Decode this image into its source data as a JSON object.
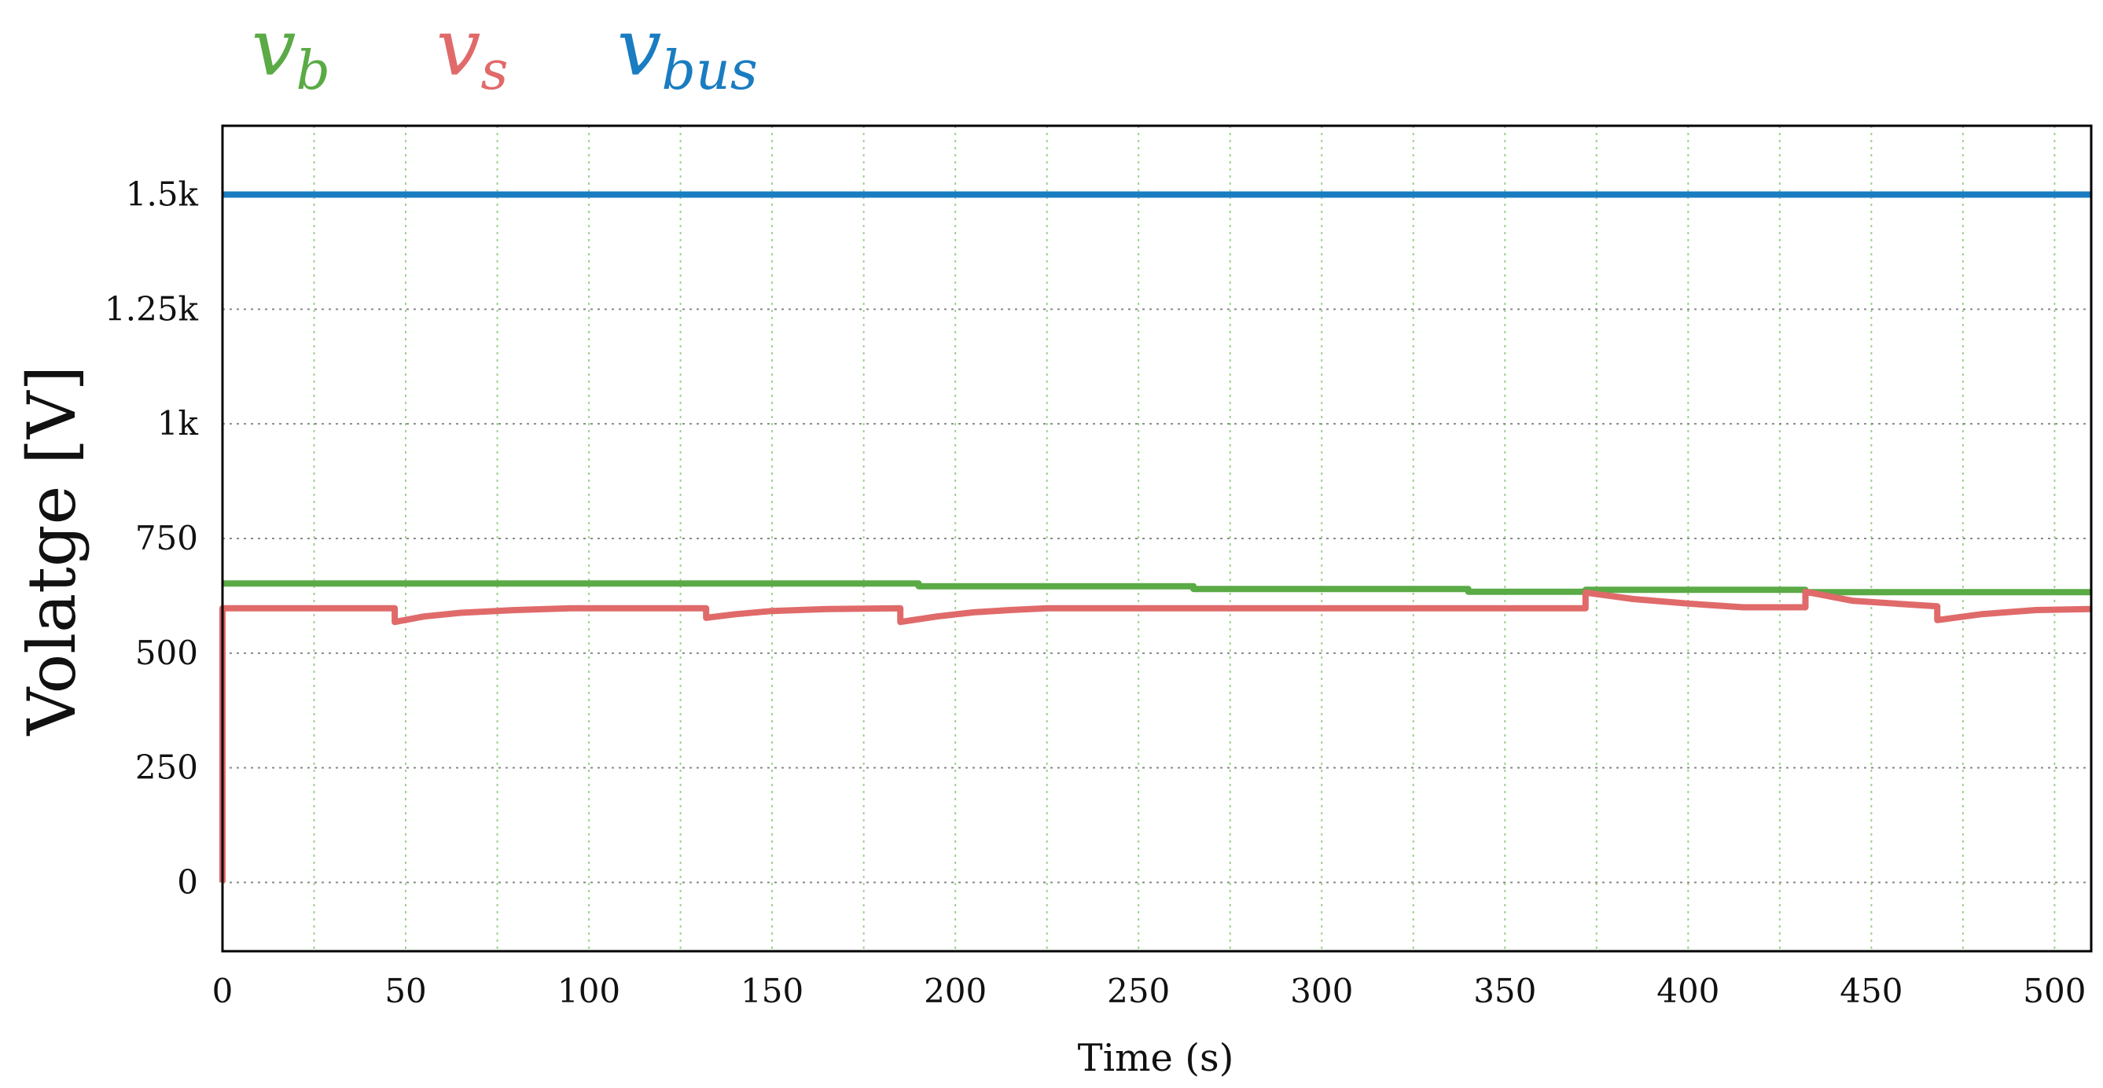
{
  "chart_data": {
    "type": "line",
    "xlabel": "Time (s)",
    "ylabel": "Volatge [V]",
    "xlim": [
      0,
      510
    ],
    "ylim": [
      -150,
      1650
    ],
    "x_ticks": [
      0,
      50,
      100,
      150,
      200,
      250,
      300,
      350,
      400,
      450,
      500
    ],
    "x_tick_labels": [
      "0",
      "50",
      "100",
      "150",
      "200",
      "250",
      "300",
      "350",
      "400",
      "450",
      "500"
    ],
    "y_ticks": [
      0,
      250,
      500,
      750,
      1000,
      1250,
      1500
    ],
    "y_tick_labels": [
      "0",
      "250",
      "500",
      "750",
      "1k",
      "1.25k",
      "1.5k"
    ],
    "grid": true,
    "legend_position": "top-left",
    "series": [
      {
        "name": "v_b",
        "label_main": "v",
        "label_sub": "b",
        "color": "#5aaa46",
        "x": [
          0,
          190,
          190,
          265,
          265,
          340,
          340,
          372,
          372,
          432,
          432,
          510
        ],
        "y": [
          652,
          652,
          646,
          646,
          640,
          640,
          634,
          634,
          638,
          638,
          633,
          633
        ]
      },
      {
        "name": "v_s",
        "label_main": "v",
        "label_sub": "s",
        "color": "#e06a6a",
        "x": [
          0,
          0,
          47,
          47,
          55,
          65,
          80,
          95,
          132,
          132,
          140,
          150,
          165,
          185,
          185,
          195,
          205,
          215,
          225,
          372,
          372,
          385,
          400,
          415,
          432,
          432,
          445,
          468,
          468,
          480,
          495,
          510
        ],
        "y": [
          0,
          598,
          598,
          568,
          580,
          588,
          594,
          598,
          598,
          577,
          585,
          592,
          596,
          598,
          568,
          580,
          589,
          594,
          598,
          598,
          632,
          618,
          608,
          600,
          600,
          634,
          614,
          602,
          572,
          585,
          594,
          596
        ]
      },
      {
        "name": "v_bus",
        "label_main": "v",
        "label_sub": "bus",
        "color": "#1a7cc1",
        "x": [
          0,
          510
        ],
        "y": [
          1500,
          1500
        ]
      }
    ]
  }
}
